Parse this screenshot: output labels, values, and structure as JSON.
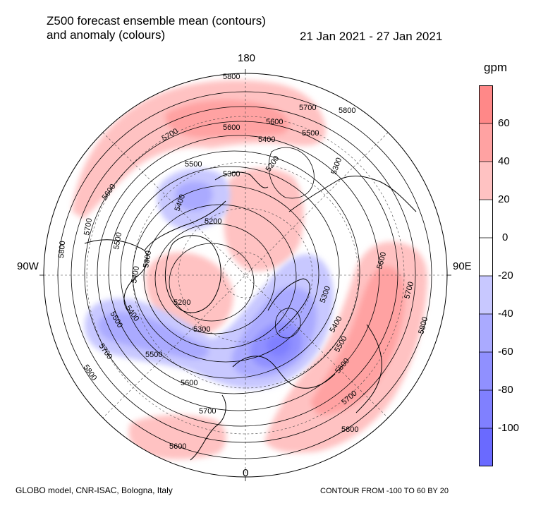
{
  "title": {
    "line1": "Z500 forecast ensemble mean (contours)",
    "line2": "and anomaly (colours)",
    "period": "21 Jan 2021 - 27 Jan 2021"
  },
  "longitude_labels": {
    "top": "180",
    "left": "90W",
    "right": "90E",
    "bottom": "0"
  },
  "colorbar": {
    "unit": "gpm",
    "ticks": [
      "60",
      "40",
      "20",
      "0",
      "-20",
      "-40",
      "-60",
      "-80",
      "-100"
    ],
    "bins": [
      {
        "from": 60,
        "to": 80,
        "color": "#ff8888"
      },
      {
        "from": 40,
        "to": 60,
        "color": "#ffa2a2"
      },
      {
        "from": 20,
        "to": 40,
        "color": "#ffc2c2"
      },
      {
        "from": 0,
        "to": 20,
        "color": "#ffffff"
      },
      {
        "from": -20,
        "to": 0,
        "color": "#ffffff"
      },
      {
        "from": -40,
        "to": -20,
        "color": "#c8c8ff"
      },
      {
        "from": -60,
        "to": -40,
        "color": "#aaaaff"
      },
      {
        "from": -80,
        "to": -60,
        "color": "#9090ff"
      },
      {
        "from": -100,
        "to": -80,
        "color": "#8080ff"
      },
      {
        "from": -120,
        "to": -100,
        "color": "#6a6aff"
      }
    ]
  },
  "contour_labels": [
    "5800",
    "5700",
    "5600",
    "5500",
    "5400",
    "5300",
    "5200",
    "5800",
    "5700",
    "5600",
    "5500",
    "5400",
    "5300",
    "5200",
    "5500",
    "5400",
    "5300",
    "5200",
    "5800",
    "5700",
    "5600",
    "5500",
    "5400",
    "5300",
    "5800",
    "5700",
    "5600",
    "5500",
    "5400",
    "5300",
    "5600",
    "5700",
    "5800",
    "5700",
    "5600",
    "5500",
    "5800",
    "5700",
    "5600"
  ],
  "footer": {
    "credit": "GLOBO model, CNR-ISAC, Bologna, Italy",
    "contour_note": "CONTOUR FROM -100 TO 60 BY 20"
  }
}
